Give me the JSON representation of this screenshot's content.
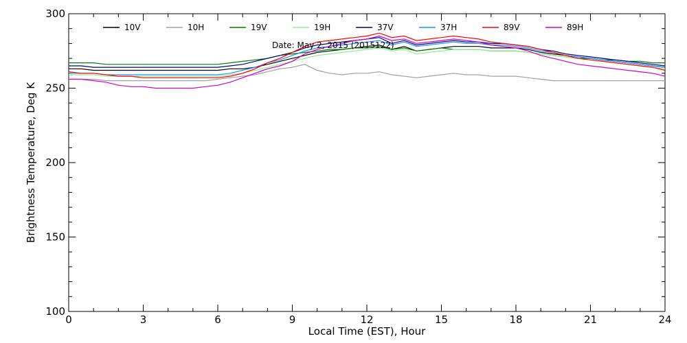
{
  "chart_data": {
    "type": "line",
    "title": "",
    "xlabel": "Local Time (EST), Hour",
    "ylabel": "Brightness Temperature, Deg  K",
    "xlim": [
      0,
      24
    ],
    "ylim": [
      100,
      300
    ],
    "xticks": [
      0,
      3,
      6,
      9,
      12,
      15,
      18,
      21,
      24
    ],
    "yticks": [
      100,
      150,
      200,
      250,
      300
    ],
    "grid": false,
    "legend_position": "top",
    "annotation": "Date: May  2, 2015 (2015122)",
    "x": [
      0,
      0.5,
      1,
      1.5,
      2,
      2.5,
      3,
      3.5,
      4,
      4.5,
      5,
      5.5,
      6,
      6.5,
      7,
      7.5,
      8,
      8.5,
      9,
      9.5,
      10,
      10.5,
      11,
      11.5,
      12,
      12.5,
      13,
      13.5,
      14,
      14.5,
      15,
      15.5,
      16,
      16.5,
      17,
      17.5,
      18,
      18.5,
      19,
      19.5,
      20,
      20.5,
      21,
      21.5,
      22,
      22.5,
      23,
      23.5,
      24
    ],
    "series": [
      {
        "name": "10V",
        "color": "#000000",
        "values": [
          263,
          263,
          262,
          262,
          262,
          262,
          262,
          262,
          262,
          262,
          262,
          262,
          262,
          263,
          263,
          264,
          266,
          268,
          270,
          272,
          274,
          275,
          276,
          277,
          278,
          279,
          276,
          278,
          275,
          276,
          277,
          278,
          278,
          278,
          277,
          277,
          277,
          276,
          274,
          273,
          272,
          271,
          270,
          269,
          268,
          267,
          266,
          265,
          264
        ]
      },
      {
        "name": "10H",
        "color": "#a0a0a0",
        "values": [
          256,
          256,
          256,
          255,
          255,
          255,
          255,
          255,
          255,
          255,
          255,
          255,
          256,
          257,
          258,
          259,
          261,
          263,
          264,
          266,
          262,
          260,
          259,
          260,
          260,
          261,
          259,
          258,
          257,
          258,
          259,
          260,
          259,
          259,
          258,
          258,
          258,
          257,
          256,
          255,
          255,
          255,
          255,
          255,
          255,
          255,
          255,
          255,
          255
        ]
      },
      {
        "name": "19V",
        "color": "#008000",
        "values": [
          267,
          267,
          267,
          266,
          266,
          266,
          266,
          266,
          266,
          266,
          266,
          266,
          266,
          267,
          268,
          269,
          270,
          272,
          273,
          274,
          275,
          276,
          276,
          277,
          277,
          278,
          276,
          277,
          275,
          276,
          277,
          276,
          276,
          276,
          275,
          275,
          275,
          274,
          273,
          272,
          271,
          270,
          270,
          269,
          269,
          268,
          268,
          267,
          267
        ]
      },
      {
        "name": "19H",
        "color": "#90ee90",
        "values": [
          259,
          259,
          259,
          258,
          258,
          258,
          258,
          258,
          258,
          258,
          258,
          258,
          258,
          259,
          260,
          262,
          264,
          266,
          268,
          270,
          272,
          273,
          274,
          275,
          276,
          277,
          275,
          276,
          273,
          274,
          275,
          276,
          276,
          276,
          275,
          275,
          275,
          274,
          273,
          272,
          271,
          270,
          269,
          268,
          267,
          266,
          265,
          264,
          263
        ]
      },
      {
        "name": "37V",
        "color": "#000080",
        "values": [
          265,
          265,
          264,
          264,
          264,
          264,
          264,
          264,
          264,
          264,
          264,
          264,
          264,
          265,
          266,
          268,
          270,
          272,
          274,
          277,
          279,
          280,
          281,
          282,
          283,
          284,
          280,
          282,
          279,
          280,
          281,
          282,
          281,
          281,
          280,
          280,
          279,
          278,
          276,
          275,
          273,
          272,
          271,
          270,
          269,
          268,
          267,
          266,
          265
        ]
      },
      {
        "name": "37H",
        "color": "#1e90ff",
        "values": [
          260,
          260,
          260,
          259,
          259,
          259,
          259,
          259,
          259,
          259,
          259,
          259,
          259,
          260,
          262,
          264,
          267,
          269,
          272,
          275,
          277,
          278,
          279,
          280,
          281,
          282,
          279,
          281,
          278,
          279,
          280,
          281,
          280,
          280,
          279,
          279,
          278,
          277,
          275,
          274,
          272,
          271,
          270,
          269,
          268,
          267,
          266,
          265,
          264
        ]
      },
      {
        "name": "89V",
        "color": "#ff0000",
        "values": [
          261,
          260,
          260,
          259,
          258,
          258,
          257,
          257,
          257,
          257,
          257,
          257,
          257,
          258,
          260,
          263,
          267,
          270,
          274,
          278,
          281,
          282,
          283,
          284,
          285,
          287,
          284,
          285,
          282,
          283,
          284,
          285,
          284,
          283,
          281,
          280,
          279,
          278,
          276,
          274,
          272,
          270,
          269,
          268,
          267,
          266,
          265,
          264,
          262
        ]
      },
      {
        "name": "89H",
        "color": "#cc00cc",
        "values": [
          256,
          256,
          255,
          254,
          252,
          251,
          251,
          250,
          250,
          250,
          250,
          251,
          252,
          254,
          257,
          260,
          263,
          265,
          268,
          273,
          276,
          278,
          280,
          282,
          283,
          285,
          282,
          283,
          280,
          281,
          282,
          283,
          282,
          281,
          279,
          278,
          277,
          275,
          272,
          270,
          268,
          266,
          265,
          264,
          263,
          262,
          261,
          260,
          258
        ]
      }
    ]
  }
}
